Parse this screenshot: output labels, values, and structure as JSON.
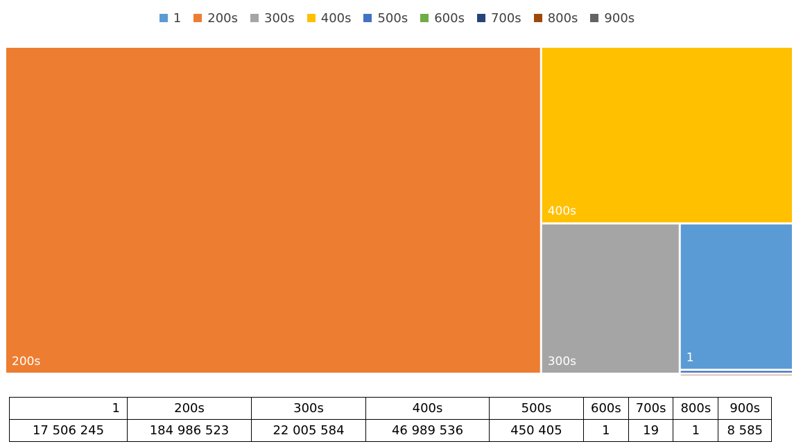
{
  "chart_data": {
    "type": "treemap",
    "title": "",
    "legend_position": "top",
    "categories": [
      "1",
      "200s",
      "300s",
      "400s",
      "500s",
      "600s",
      "700s",
      "800s",
      "900s"
    ],
    "values": [
      17506245,
      184986523,
      22005584,
      46989536,
      450405,
      1,
      19,
      1,
      8585
    ],
    "value_labels": [
      "17 506 245",
      "184 986 523",
      "22 005 584",
      "46 989 536",
      "450 405",
      "1",
      "19",
      "1",
      "8 585"
    ],
    "colors": [
      "#5B9BD5",
      "#ED7D31",
      "#A5A5A5",
      "#FFC000",
      "#4472C4",
      "#70AD47",
      "#264478",
      "#9E480E",
      "#636363"
    ]
  }
}
